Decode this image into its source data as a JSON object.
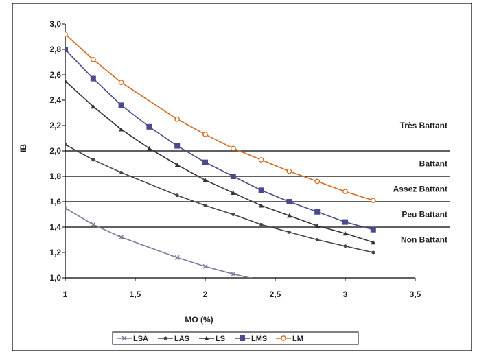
{
  "chart_data": {
    "type": "line",
    "title": "",
    "xlabel": "MO (%)",
    "ylabel": "IB",
    "xlim": [
      1,
      3.5
    ],
    "ylim": [
      1.0,
      3.0
    ],
    "x_ticks": [
      "1",
      "1,5",
      "2",
      "2,5",
      "3",
      "3,5"
    ],
    "y_ticks": [
      "1,0",
      "1,2",
      "1,4",
      "1,6",
      "1,8",
      "2,0",
      "2,2",
      "2,4",
      "2,6",
      "2,8",
      "3,0"
    ],
    "thresholds": [
      1.4,
      1.6,
      1.8,
      2.0
    ],
    "zones": [
      {
        "label": "Très Battant",
        "y": 2.2
      },
      {
        "label": "Battant",
        "y": 1.9
      },
      {
        "label": "Assez Battant",
        "y": 1.7
      },
      {
        "label": "Peu Battant",
        "y": 1.5
      },
      {
        "label": "Non Battant",
        "y": 1.3
      }
    ],
    "legend_position": "bottom",
    "series": [
      {
        "name": "LSA",
        "marker": "x",
        "color": "#7a7a9a",
        "x": [
          1.0,
          1.2,
          1.4,
          1.8,
          2.0,
          2.2,
          2.4
        ],
        "y": [
          1.55,
          1.42,
          1.32,
          1.16,
          1.09,
          1.03,
          0.98
        ]
      },
      {
        "name": "LAS",
        "marker": "dot",
        "color": "#444444",
        "x": [
          1.0,
          1.2,
          1.4,
          1.8,
          2.0,
          2.2,
          2.4,
          2.6,
          2.8,
          3.0,
          3.2
        ],
        "y": [
          2.05,
          1.93,
          1.83,
          1.65,
          1.57,
          1.5,
          1.42,
          1.36,
          1.3,
          1.25,
          1.2
        ]
      },
      {
        "name": "LS",
        "marker": "triangle",
        "color": "#333333",
        "x": [
          1.0,
          1.2,
          1.4,
          1.6,
          1.8,
          2.0,
          2.2,
          2.4,
          2.6,
          2.8,
          3.0,
          3.2
        ],
        "y": [
          2.55,
          2.35,
          2.17,
          2.02,
          1.89,
          1.77,
          1.67,
          1.57,
          1.49,
          1.41,
          1.35,
          1.28
        ]
      },
      {
        "name": "LMS",
        "marker": "square",
        "color": "#4a4a8c",
        "x": [
          1.0,
          1.2,
          1.4,
          1.6,
          1.8,
          2.0,
          2.2,
          2.4,
          2.6,
          2.8,
          3.0,
          3.2
        ],
        "y": [
          2.8,
          2.57,
          2.36,
          2.19,
          2.04,
          1.91,
          1.8,
          1.69,
          1.6,
          1.52,
          1.44,
          1.38
        ]
      },
      {
        "name": "LM",
        "marker": "circle",
        "color": "#d2691e",
        "x": [
          1.0,
          1.2,
          1.4,
          1.8,
          2.0,
          2.2,
          2.4,
          2.6,
          2.8,
          3.0,
          3.2
        ],
        "y": [
          2.92,
          2.72,
          2.54,
          2.25,
          2.13,
          2.02,
          1.93,
          1.84,
          1.76,
          1.68,
          1.61
        ]
      }
    ]
  }
}
